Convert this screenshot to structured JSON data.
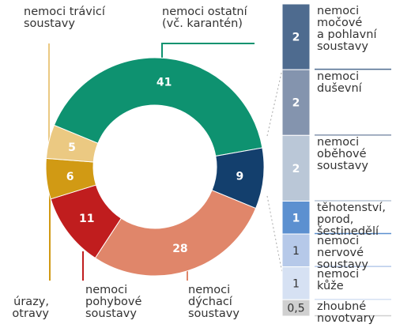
{
  "chart_data": [
    {
      "type": "donut",
      "categories": [
        "nemoci ostatní\n(vč. karantén)",
        null,
        "nemoci\ndýchací\nsoustavy",
        "nemoci\npohybové\nsoustavy",
        "úrazy,\notravy",
        "nemoci trávicí\nsoustavy"
      ],
      "values": [
        41,
        9,
        28,
        11,
        6,
        5
      ],
      "colors": [
        "#0e9270",
        "#133f6d",
        "#e0866a",
        "#c01d1e",
        "#d19a14",
        "#ebc982"
      ]
    },
    {
      "type": "stacked-bar",
      "categories": [
        "nemoci\nmočové\na pohlavní\nsoustavy",
        "nemoci\nduševní",
        "nemoci\noběhové\nsoustavy",
        "těhotenství,\nporod,\nšestinedělí",
        "nemoci\nnervové\nsoustavy",
        "nemoci\nkůže",
        "zhoubné\nnovotvary"
      ],
      "values": [
        2,
        2,
        2,
        1,
        1,
        1,
        0.5
      ],
      "value_labels": [
        "2",
        "2",
        "2",
        "1",
        "1",
        "1",
        "0,5"
      ],
      "colors": [
        "#4e6b8f",
        "#8494ae",
        "#bac7d7",
        "#5c90d0",
        "#b6c9e9",
        "#d6e1f3",
        "#d0d0d0"
      ]
    }
  ]
}
